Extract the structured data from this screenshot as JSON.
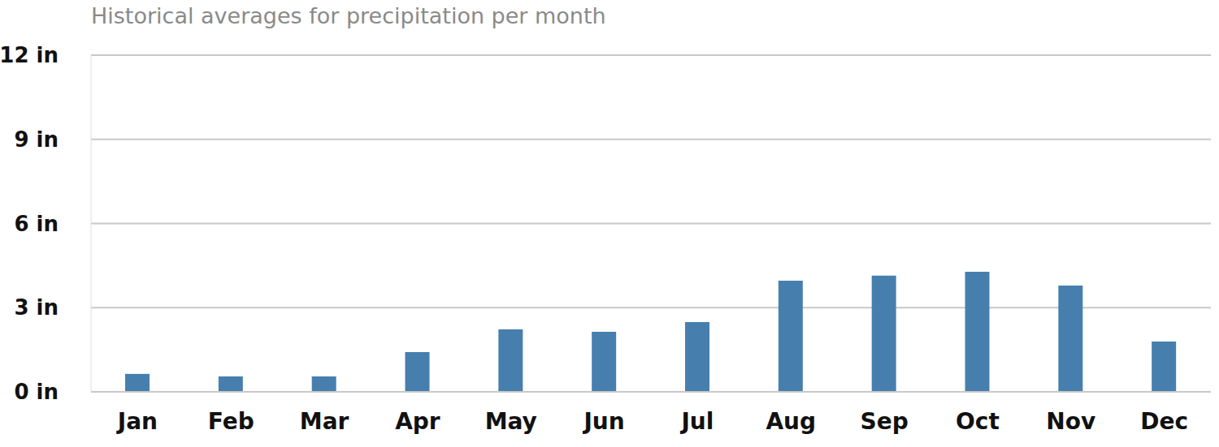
{
  "chart_data": {
    "type": "bar",
    "title": "Historical averages for precipitation per month",
    "categories": [
      "Jan",
      "Feb",
      "Mar",
      "Apr",
      "May",
      "Jun",
      "Jul",
      "Aug",
      "Sep",
      "Oct",
      "Nov",
      "Dec"
    ],
    "values": [
      0.64,
      0.55,
      0.55,
      1.42,
      2.23,
      2.14,
      2.49,
      3.96,
      4.14,
      4.28,
      3.79,
      1.79
    ],
    "color": "#467fae",
    "ylim": [
      0,
      12
    ],
    "yticks": [
      {
        "value": 0,
        "label": "0 in"
      },
      {
        "value": 3,
        "label": "3 in"
      },
      {
        "value": 6,
        "label": "6 in"
      },
      {
        "value": 9,
        "label": "9 in"
      },
      {
        "value": 12,
        "label": "12 in"
      }
    ],
    "grid": true
  }
}
